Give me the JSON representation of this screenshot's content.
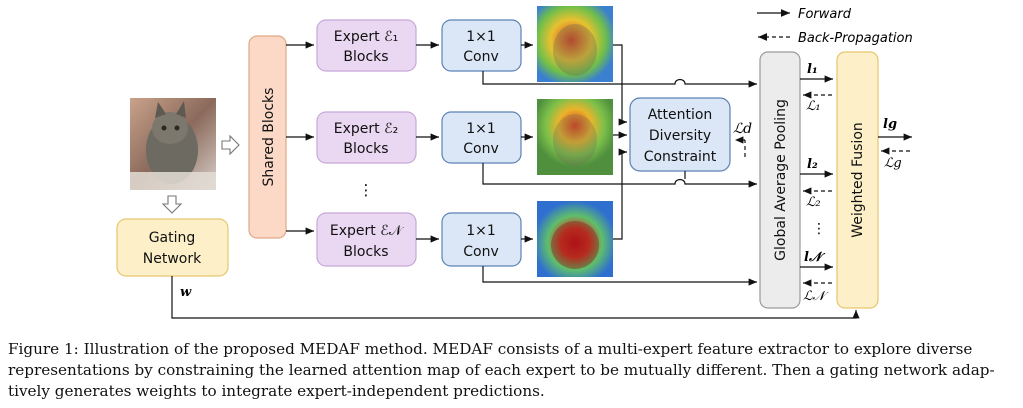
{
  "legend": {
    "forward": "Forward",
    "backprop": "Back-Propagation"
  },
  "shared_blocks": "Shared Blocks",
  "experts": [
    {
      "line1": "Expert ℰ₁",
      "line2": "Blocks",
      "conv1": "1×1",
      "conv2": "Conv",
      "loss_top": "l₁",
      "loss_bottom": "ℒ₁"
    },
    {
      "line1": "Expert ℰ₂",
      "line2": "Blocks",
      "conv1": "1×1",
      "conv2": "Conv",
      "loss_top": "l₂",
      "loss_bottom": "ℒ₂"
    },
    {
      "line1": "Expert ℰ𝒩",
      "line2": "Blocks",
      "conv1": "1×1",
      "conv2": "Conv",
      "loss_top": "l𝒩",
      "loss_bottom": "ℒ𝒩"
    }
  ],
  "dots": "⋮",
  "attention": {
    "line1": "Attention",
    "line2": "Diversity",
    "line3": "Constraint",
    "loss": "ℒd"
  },
  "gap": "Global Average Pooling",
  "fusion": "Weighted Fusion",
  "gating": {
    "line1": "Gating",
    "line2": "Network",
    "weight": "w"
  },
  "output": {
    "top": "lg",
    "bottom": "ℒg"
  },
  "caption": [
    "Figure 1: Illustration of the proposed MEDAF method. MEDAF consists of a multi-expert feature extractor to explore diverse",
    "representations by constraining the learned attention map of each expert to be mutually different. Then a gating network adap-",
    "tively generates weights to integrate expert-independent predictions."
  ]
}
